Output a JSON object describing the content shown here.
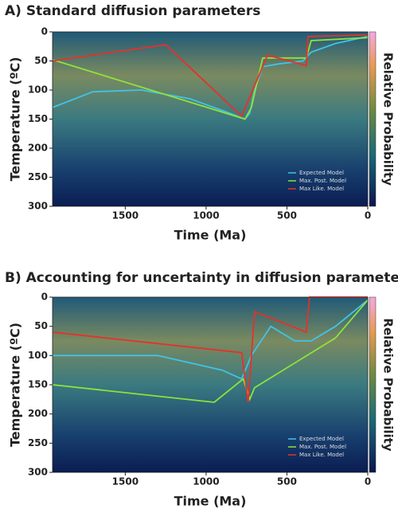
{
  "chart_data": [
    {
      "type": "line",
      "title": "A) Standard diffusion parameters",
      "x_label": "Time (Ma)",
      "y_label": "Temperature (ºC)",
      "colorbar_label": "Relative Probability",
      "xlim": [
        1950,
        0
      ],
      "xticks": [
        1500,
        1000,
        500,
        0
      ],
      "ylim": [
        0,
        300
      ],
      "yticks": [
        0,
        50,
        100,
        150,
        200,
        250,
        300
      ],
      "y_inverted": true,
      "legend": "lower right",
      "series": [
        {
          "name": "Expected Model",
          "color": "#3fc4e8",
          "x": [
            1950,
            1700,
            1400,
            1100,
            900,
            760,
            730,
            700,
            650,
            550,
            400,
            350,
            200,
            0
          ],
          "values": [
            130,
            103,
            100,
            115,
            135,
            150,
            140,
            100,
            60,
            55,
            50,
            35,
            20,
            8
          ]
        },
        {
          "name": "Max. Post. Model",
          "color": "#8fe23a",
          "x": [
            1950,
            760,
            720,
            650,
            380,
            350,
            0
          ],
          "values": [
            48,
            150,
            130,
            45,
            45,
            15,
            10
          ]
        },
        {
          "name": "Max Like. Model",
          "color": "#e8302a",
          "x": [
            1950,
            1250,
            780,
            620,
            380,
            370,
            0
          ],
          "values": [
            50,
            22,
            145,
            40,
            58,
            8,
            5
          ]
        }
      ]
    },
    {
      "type": "line",
      "title": "B) Accounting for uncertainty in diffusion parameters",
      "x_label": "Time (Ma)",
      "y_label": "Temperature (ºC)",
      "colorbar_label": "Relative Probability",
      "xlim": [
        1950,
        0
      ],
      "xticks": [
        1500,
        1000,
        500,
        0
      ],
      "ylim": [
        0,
        300
      ],
      "yticks": [
        0,
        50,
        100,
        150,
        200,
        250,
        300
      ],
      "y_inverted": true,
      "legend": "lower right",
      "series": [
        {
          "name": "Expected Model",
          "color": "#3fc4e8",
          "x": [
            1950,
            1300,
            900,
            780,
            720,
            600,
            450,
            350,
            200,
            0
          ],
          "values": [
            100,
            100,
            125,
            140,
            100,
            50,
            75,
            75,
            50,
            5
          ]
        },
        {
          "name": "Max. Post. Model",
          "color": "#8fe23a",
          "x": [
            1950,
            950,
            770,
            730,
            700,
            200,
            0
          ],
          "values": [
            150,
            180,
            140,
            175,
            155,
            70,
            5
          ]
        },
        {
          "name": "Max Like. Model",
          "color": "#e8302a",
          "x": [
            1950,
            780,
            740,
            700,
            380,
            360,
            0
          ],
          "values": [
            60,
            95,
            180,
            25,
            60,
            0,
            0
          ]
        }
      ]
    }
  ]
}
